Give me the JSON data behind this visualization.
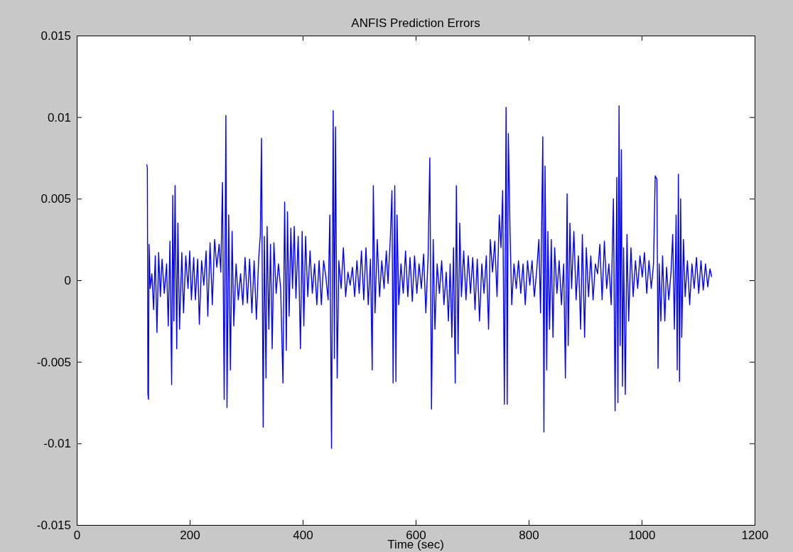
{
  "chart_data": {
    "type": "line",
    "title": "ANFIS Prediction Errors",
    "xlabel": "Time (sec)",
    "xlim": [
      0,
      1200
    ],
    "xticks": [
      0,
      200,
      400,
      600,
      800,
      1000,
      1200
    ],
    "ylim": [
      -0.015,
      0.015
    ],
    "yticks": [
      -0.015,
      -0.01,
      -0.005,
      0,
      0.005,
      0.01,
      0.015
    ],
    "grid": false,
    "marker": "none",
    "line_style": "solid",
    "series": [
      {
        "color": "#0000ff",
        "x": [
          124,
          125,
          126,
          127,
          128,
          130,
          133,
          136,
          139,
          142,
          145,
          148,
          151,
          155,
          159,
          162,
          165,
          168,
          170,
          172,
          174,
          177,
          179,
          182,
          186,
          189,
          193,
          197,
          200,
          203,
          207,
          210,
          214,
          217,
          221,
          225,
          229,
          232,
          236,
          240,
          244,
          248,
          252,
          255,
          258,
          261,
          264,
          266,
          269,
          272,
          275,
          278,
          282,
          286,
          290,
          294,
          298,
          302,
          306,
          310,
          314,
          318,
          322,
          325,
          327,
          330,
          332,
          335,
          337,
          340,
          343,
          346,
          349,
          353,
          357,
          361,
          365,
          368,
          371,
          373,
          376,
          379,
          382,
          385,
          388,
          392,
          396,
          399,
          402,
          405,
          409,
          413,
          417,
          421,
          425,
          429,
          433,
          437,
          441,
          445,
          448,
          451,
          454,
          456,
          458,
          461,
          464,
          468,
          472,
          476,
          480,
          484,
          488,
          492,
          496,
          500,
          504,
          508,
          512,
          516,
          520,
          523,
          525,
          528,
          532,
          536,
          540,
          544,
          548,
          551,
          555,
          558,
          560,
          563,
          565,
          567,
          570,
          574,
          578,
          582,
          586,
          590,
          594,
          598,
          602,
          606,
          610,
          614,
          618,
          622,
          625,
          628,
          631,
          634,
          638,
          642,
          646,
          650,
          654,
          658,
          661,
          664,
          667,
          670,
          672,
          675,
          678,
          681,
          685,
          689,
          693,
          697,
          701,
          705,
          709,
          713,
          717,
          721,
          725,
          729,
          732,
          736,
          740,
          744,
          748,
          751,
          754,
          757,
          760,
          762,
          764,
          767,
          770,
          774,
          778,
          782,
          786,
          790,
          794,
          798,
          802,
          806,
          810,
          814,
          818,
          821,
          825,
          827,
          829,
          832,
          834,
          837,
          840,
          843,
          846,
          850,
          854,
          858,
          862,
          865,
          868,
          870,
          873,
          876,
          880,
          884,
          888,
          892,
          895,
          899,
          902,
          906,
          910,
          914,
          918,
          922,
          926,
          930,
          934,
          938,
          942,
          946,
          950,
          953,
          956,
          958,
          960,
          962,
          964,
          966,
          968,
          971,
          974,
          977,
          981,
          985,
          989,
          993,
          997,
          1001,
          1005,
          1009,
          1013,
          1017,
          1021,
          1024,
          1027,
          1029,
          1031,
          1034,
          1037,
          1041,
          1044,
          1048,
          1052,
          1055,
          1058,
          1061,
          1063,
          1065,
          1067,
          1069,
          1071,
          1074,
          1077,
          1081,
          1085,
          1089,
          1093,
          1097,
          1101,
          1105,
          1109,
          1113,
          1117,
          1121,
          1124
        ],
        "values": [
          0.0071,
          0.0069,
          -0.007,
          -0.0073,
          0.0022,
          -0.0005,
          0.0004,
          -0.0018,
          0.0015,
          -0.0032,
          0.0017,
          -0.001,
          0.0013,
          -0.0008,
          0.001,
          -0.0028,
          0.0024,
          -0.0064,
          0.0052,
          -0.0025,
          0.0058,
          -0.0042,
          0.0035,
          -0.003,
          0.0017,
          -0.002,
          0.0015,
          -0.0005,
          0.0018,
          -0.0012,
          0.0014,
          -0.0012,
          0.0013,
          -0.0027,
          0.0012,
          -0.0003,
          0.0018,
          -0.0022,
          0.0023,
          -0.0015,
          0.0025,
          0.0008,
          0.0022,
          0.0005,
          0.006,
          -0.0073,
          0.0101,
          -0.0078,
          0.004,
          -0.0055,
          0.003,
          -0.0028,
          0.001,
          -0.0012,
          0.0004,
          -0.0015,
          0.0014,
          -0.0014,
          0.0013,
          -0.002,
          0.0012,
          -0.0024,
          0.0013,
          0.0028,
          0.0087,
          -0.009,
          0.0027,
          -0.006,
          0.0033,
          -0.003,
          0.0022,
          -0.0042,
          0.0023,
          -0.0008,
          0.001,
          -0.0005,
          -0.0063,
          0.0048,
          -0.0043,
          0.0042,
          -0.0022,
          0.0032,
          -0.0005,
          0.0033,
          -0.0011,
          0.0027,
          -0.0042,
          0.003,
          -0.0028,
          0.0027,
          -0.001,
          0.0018,
          -0.0008,
          0.001,
          -0.0015,
          0.0012,
          -0.0015,
          0.0012,
          0.0002,
          -0.0012,
          0.004,
          -0.0103,
          0.0104,
          -0.0048,
          0.0094,
          -0.006,
          0.0012,
          -0.0005,
          0.002,
          -0.001,
          0.0005,
          -0.0003,
          0.0008,
          -0.001,
          0.0012,
          -0.0008,
          0.0018,
          -0.0012,
          0.002,
          -0.0015,
          0.0013,
          -0.0055,
          0.0058,
          -0.002,
          0.0025,
          -0.001,
          0.0012,
          -0.0005,
          0.0018,
          -0.0002,
          0.0025,
          0.0055,
          -0.0063,
          0.0058,
          -0.0062,
          0.004,
          -0.0015,
          0.001,
          -0.0008,
          0.0018,
          -0.001,
          0.0014,
          -0.0013,
          0.0015,
          -0.0008,
          0.001,
          -0.0005,
          0.0016,
          -0.002,
          0.0015,
          0.0075,
          -0.0079,
          0.0025,
          -0.003,
          0.001,
          -0.0008,
          0.0012,
          -0.0015,
          0.0005,
          -0.0025,
          0.001,
          -0.0035,
          0.002,
          -0.0063,
          0.0058,
          -0.0045,
          0.0035,
          -0.001,
          0.0018,
          -0.0012,
          0.0015,
          -0.0008,
          0.0014,
          -0.0018,
          0.0013,
          -0.0025,
          0.001,
          -0.0008,
          0.0015,
          -0.003,
          0.0025,
          0.0005,
          0.0024,
          -0.001,
          0.004,
          0.002,
          0.0055,
          -0.0076,
          0.0106,
          -0.0076,
          0.009,
          0.003,
          -0.0015,
          0.001,
          -0.0005,
          0.0012,
          -0.0008,
          0.001,
          -0.0015,
          0.0012,
          -0.0003,
          0.0012,
          -0.001,
          0.0005,
          0.0025,
          -0.002,
          0.0088,
          -0.0093,
          0.007,
          -0.0055,
          0.003,
          -0.003,
          0.0025,
          -0.0035,
          0.002,
          -0.0008,
          0.0012,
          -0.0015,
          0.001,
          -0.006,
          0.0053,
          -0.004,
          0.0035,
          -0.0005,
          0.003,
          -0.0012,
          0.0015,
          -0.003,
          0.0028,
          -0.0035,
          0.002,
          -0.001,
          0.0015,
          -0.0012,
          0.001,
          0.0004,
          0.0022,
          -0.0012,
          0.0024,
          -0.0005,
          0.001,
          -0.0015,
          0.005,
          -0.008,
          0.0063,
          -0.0075,
          0.0107,
          -0.004,
          0.008,
          -0.0065,
          0.002,
          -0.007,
          0.0028,
          -0.0025,
          0.002,
          -0.001,
          0.0012,
          -0.0005,
          0.0015,
          0.0002,
          0.0017,
          -0.0008,
          0.0012,
          -0.0005,
          0.001,
          0.0064,
          0.0062,
          -0.0054,
          0.001,
          -0.0025,
          0.0015,
          -0.0025,
          0.0008,
          -0.0012,
          0.0005,
          0.0028,
          -0.003,
          0.004,
          -0.0055,
          0.0065,
          -0.0062,
          0.005,
          -0.0035,
          0.0025,
          -0.001,
          0.0012,
          -0.0015,
          0.001,
          -0.0005,
          0.0014,
          -0.0008,
          0.0012,
          -0.0006,
          0.001,
          -0.0004,
          0.0007,
          0.0002
        ]
      }
    ]
  }
}
